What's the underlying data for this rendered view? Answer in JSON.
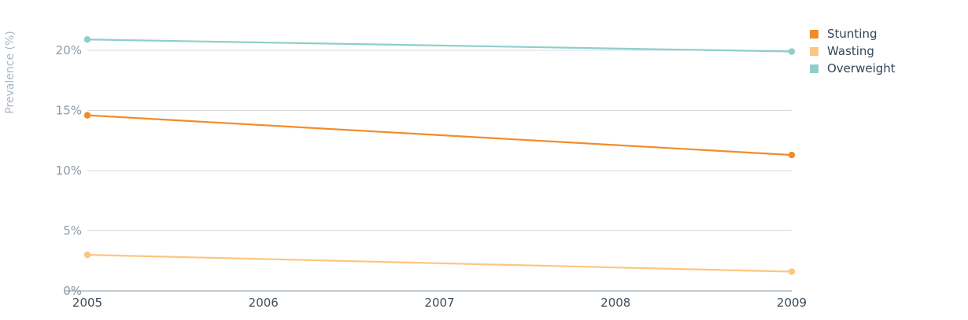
{
  "chart_data": {
    "type": "line",
    "x": [
      "2005",
      "2006",
      "2007",
      "2008",
      "2009"
    ],
    "series": [
      {
        "name": "Stunting",
        "color": "#f28c28",
        "x": [
          "2005",
          "2009"
        ],
        "values": [
          14.6,
          11.3
        ]
      },
      {
        "name": "Wasting",
        "color": "#fdc57f",
        "x": [
          "2005",
          "2009"
        ],
        "values": [
          3.0,
          1.6
        ]
      },
      {
        "name": "Overweight",
        "color": "#8ecfc9",
        "x": [
          "2005",
          "2009"
        ],
        "values": [
          20.9,
          19.9
        ]
      }
    ],
    "ylabel": "Prevalence (%)",
    "xlabel": "",
    "ylim": [
      0,
      20
    ],
    "yticks": [
      {
        "value": 0,
        "label": "0%"
      },
      {
        "value": 5,
        "label": "5%"
      },
      {
        "value": 10,
        "label": "10%"
      },
      {
        "value": 15,
        "label": "15%"
      },
      {
        "value": 20,
        "label": "20%"
      }
    ],
    "grid": true,
    "legend": "top-right"
  }
}
